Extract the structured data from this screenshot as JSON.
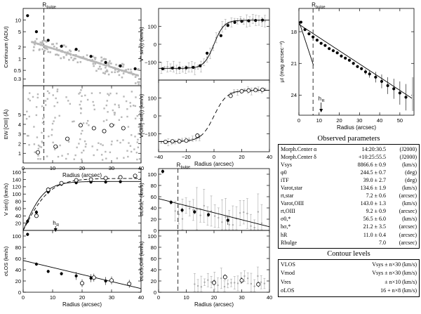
{
  "chart_data": [
    {
      "id": "continuum",
      "type": "scatter",
      "ylabel": "Continuum (ADU)",
      "xlim": [
        0,
        40
      ],
      "ylim_log": [
        0.2,
        20
      ],
      "yticks": [
        {
          "v": 0.3,
          "label": "0.3"
        },
        {
          "v": 0.5,
          "label": "0.5"
        },
        {
          "v": 1,
          "label": "1"
        },
        {
          "v": 2,
          "label": "2"
        },
        {
          "v": 5,
          "label": "5"
        },
        {
          "v": 10,
          "label": "10"
        }
      ],
      "vline": 7.0,
      "vline_label": "R",
      "vline_sub": "bulge",
      "series": [
        {
          "kind": "measured",
          "x": [
            1.5,
            4.5,
            8.5,
            13,
            18,
            23,
            28,
            33,
            38
          ],
          "y": [
            13,
            5.0,
            3.0,
            2.1,
            1.75,
            1.15,
            0.8,
            0.65,
            0.55
          ]
        }
      ]
    },
    {
      "id": "ew",
      "type": "scatter",
      "ylabel": "EW [OIII] (Å)",
      "xlabel": "Radius (arcsec)",
      "xlim": [
        0,
        40
      ],
      "ylim": [
        0,
        8
      ],
      "yticks": [
        {
          "v": 1,
          "label": "1"
        },
        {
          "v": 2,
          "label": "2"
        },
        {
          "v": 3,
          "label": "3"
        },
        {
          "v": 4,
          "label": "4"
        },
        {
          "v": 5,
          "label": "5"
        }
      ],
      "xticks": [
        0,
        10,
        20,
        30,
        40
      ],
      "vline": 7.0,
      "series": [
        {
          "kind": "open",
          "x": [
            5,
            11,
            15,
            19.5,
            24,
            27.5,
            30,
            34
          ],
          "y": [
            1.1,
            1.7,
            2.5,
            3.9,
            3.6,
            3.3,
            3.9,
            3.6
          ]
        }
      ]
    },
    {
      "id": "vstar",
      "type": "line",
      "ylabel": "V* sin(i) (km/s)",
      "xlim": [
        -40,
        40
      ],
      "ylim": [
        -200,
        200
      ],
      "yticks": [
        {
          "v": -100,
          "label": "−100"
        },
        {
          "v": 0,
          "label": "0"
        },
        {
          "v": 100,
          "label": "100"
        }
      ],
      "series": [
        {
          "kind": "filled",
          "x": [
            -37,
            -30,
            -25,
            -20,
            -15,
            -10,
            -5,
            5,
            10,
            15,
            20,
            25,
            30,
            35
          ],
          "y": [
            -137,
            -133,
            -133,
            -131,
            -129,
            -120,
            -50,
            48,
            105,
            122,
            128,
            131,
            133,
            135
          ]
        }
      ]
    },
    {
      "id": "vgas",
      "type": "line",
      "ylabel": "V[OIII] sin(i) (km/s)",
      "xlabel": "Radius (arcsec)",
      "xlim": [
        -40,
        40
      ],
      "ylim": [
        -200,
        200
      ],
      "yticks": [
        {
          "v": -100,
          "label": "−100"
        },
        {
          "v": 0,
          "label": "0"
        },
        {
          "v": 100,
          "label": "100"
        }
      ],
      "xticks": [
        {
          "v": -40,
          "label": "−40"
        },
        {
          "v": -20,
          "label": "−20"
        },
        {
          "v": 0,
          "label": "0"
        },
        {
          "v": 20,
          "label": "20"
        },
        {
          "v": 40,
          "label": "40"
        }
      ],
      "series": [
        {
          "kind": "open",
          "x": [
            -35,
            -30,
            -25,
            -20,
            -12,
            12,
            20,
            25,
            30,
            35
          ],
          "y": [
            -145,
            -142,
            -142,
            -138,
            -110,
            112,
            138,
            142,
            144,
            146
          ]
        }
      ]
    },
    {
      "id": "sb",
      "type": "line",
      "ylabel": "μI (mag arcsec⁻²)",
      "xlabel": "Radius (arcsec)",
      "xlim": [
        0,
        57
      ],
      "ylim": [
        15.8,
        25.9
      ],
      "yticks": [
        {
          "v": 18,
          "label": "18"
        },
        {
          "v": 21,
          "label": "21"
        },
        {
          "v": 24,
          "label": "24"
        }
      ],
      "xticks": [
        0,
        10,
        20,
        30,
        40,
        50
      ],
      "vline": 7.0,
      "vline_label": "R",
      "vline_sub": "bulge",
      "arrow_x": 11.0,
      "arrow_label": "h",
      "arrow_sub": "R",
      "series": [
        {
          "kind": "filled",
          "x": [
            1,
            3,
            5,
            7,
            9,
            11,
            13,
            15,
            17,
            19,
            21,
            23,
            25,
            27,
            29,
            31,
            33,
            35,
            38,
            41,
            44,
            47,
            50,
            53
          ],
          "y": [
            17.1,
            17.8,
            18.2,
            18.5,
            18.8,
            19.1,
            19.3,
            19.6,
            19.8,
            20.0,
            20.3,
            20.5,
            20.7,
            21.0,
            21.3,
            21.5,
            21.8,
            22.0,
            22.3,
            22.7,
            23.1,
            23.4,
            23.8,
            24.2
          ]
        }
      ]
    },
    {
      "id": "vrot",
      "type": "line",
      "ylabel": "V sin(i) (km/s)",
      "xlim": [
        0,
        40
      ],
      "ylim": [
        0,
        170
      ],
      "yticks": [
        {
          "v": 20,
          "label": "20"
        },
        {
          "v": 40,
          "label": "40"
        },
        {
          "v": 60,
          "label": "60"
        },
        {
          "v": 80,
          "label": "80"
        },
        {
          "v": 100,
          "label": "100"
        },
        {
          "v": 120,
          "label": "120"
        },
        {
          "v": 140,
          "label": "140"
        },
        {
          "v": 160,
          "label": "160"
        }
      ],
      "arrow_x": 11.0,
      "arrow_label": "h",
      "arrow_sub": "R",
      "series": [
        {
          "kind": "filled",
          "x": [
            1.5,
            4.5,
            8.5,
            13,
            18,
            23,
            28,
            33
          ],
          "y": [
            25,
            50,
            106,
            127,
            131,
            133,
            133,
            134
          ]
        },
        {
          "kind": "open",
          "x": [
            4.5,
            8.5,
            13,
            18,
            23,
            28,
            33,
            38
          ],
          "y": [
            40,
            112,
            130,
            138,
            140,
            144,
            146,
            150
          ]
        }
      ]
    },
    {
      "id": "sigstar",
      "type": "line",
      "ylabel": "σLOS (km/s)",
      "xlabel": "Radius (arcsec)",
      "xlim": [
        0,
        40
      ],
      "ylim": [
        0,
        110
      ],
      "yticks": [
        {
          "v": 0,
          "label": "0"
        },
        {
          "v": 20,
          "label": "20"
        },
        {
          "v": 40,
          "label": "40"
        },
        {
          "v": 60,
          "label": "60"
        },
        {
          "v": 80,
          "label": "80"
        },
        {
          "v": 100,
          "label": "100"
        }
      ],
      "xticks": [
        0,
        10,
        20,
        30,
        40
      ],
      "series": [
        {
          "kind": "filled",
          "x": [
            1.5,
            4.5,
            8.5,
            13,
            18,
            23,
            28
          ],
          "y": [
            103,
            50,
            37,
            33,
            29,
            25,
            20
          ]
        },
        {
          "kind": "open",
          "x": [
            20,
            24,
            30,
            36
          ],
          "y": [
            16,
            26,
            21,
            15
          ]
        }
      ]
    },
    {
      "id": "siglos",
      "type": "scatter",
      "ylabel": "σLOS,* (km/s)",
      "xlim": [
        0,
        40
      ],
      "ylim": [
        0,
        110
      ],
      "yticks": [
        {
          "v": 0,
          "label": "0"
        },
        {
          "v": 20,
          "label": "20"
        },
        {
          "v": 40,
          "label": "40"
        },
        {
          "v": 60,
          "label": "60"
        },
        {
          "v": 80,
          "label": "80"
        },
        {
          "v": 100,
          "label": "100"
        }
      ],
      "vline": 7.0,
      "vline_label": "R",
      "vline_sub": "bulge",
      "series": [
        {
          "kind": "filled",
          "x": [
            1.5,
            4.5,
            8.5,
            13,
            18,
            25
          ],
          "y": [
            105,
            50,
            36,
            33,
            28,
            18
          ]
        }
      ]
    },
    {
      "id": "siggas",
      "type": "scatter",
      "ylabel": "σLOS,OIII (km/s)",
      "xlabel": "Radius (arcsec)",
      "xlim": [
        0,
        40
      ],
      "ylim": [
        0,
        110
      ],
      "yticks": [
        {
          "v": 0,
          "label": "0"
        },
        {
          "v": 20,
          "label": "20"
        },
        {
          "v": 40,
          "label": "40"
        },
        {
          "v": 60,
          "label": "60"
        },
        {
          "v": 80,
          "label": "80"
        },
        {
          "v": 100,
          "label": "100"
        }
      ],
      "xticks": [
        0,
        10,
        20,
        30,
        40
      ],
      "vline": 7.0,
      "series": [
        {
          "kind": "open",
          "x": [
            20,
            24,
            30,
            36
          ],
          "y": [
            17,
            27,
            21,
            14
          ]
        }
      ]
    }
  ],
  "observed": {
    "title": "Observed parameters",
    "rows": [
      {
        "label": "Morph.Center α",
        "value": "14:20:30.5",
        "unit": "(J2000)"
      },
      {
        "label": "Morph.Center δ",
        "value": "+10:25:55.5",
        "unit": "(J2000)"
      },
      {
        "label": "Vsys",
        "value": "8866.6 ± 0.9",
        "unit": "(km/s)"
      },
      {
        "label": "φ0",
        "value": "244.5 ± 0.7",
        "unit": "(deg)"
      },
      {
        "label": "iTF",
        "value": "39.0 ± 2.7",
        "unit": "(deg)"
      },
      {
        "label": "Varot,star",
        "value": "134.6 ± 1.9",
        "unit": "(km/s)"
      },
      {
        "label": "rt,star",
        "value": "7.2 ± 0.6",
        "unit": "(arcsec)"
      },
      {
        "label": "Varot,OIII",
        "value": "143.0 ± 1.3",
        "unit": "(km/s)"
      },
      {
        "label": "rt,OIII",
        "value": "9.2 ± 0.9",
        "unit": "(arcsec)"
      },
      {
        "label": "σ0,*",
        "value": "56.5 ± 6.0",
        "unit": "(km/s)"
      },
      {
        "label": "hσ,*",
        "value": "21.2 ± 3.5",
        "unit": "(arcsec)"
      },
      {
        "label": "hR",
        "value": "11.0 ± 0.4",
        "unit": "(arcsec)"
      },
      {
        "label": "Rbulge",
        "value": "7.0",
        "unit": "(arcsec)"
      }
    ]
  },
  "contours": {
    "title": "Contour levels",
    "rows": [
      {
        "label": "VLOS",
        "value": "Vsys ± n×30  (km/s)"
      },
      {
        "label": "Vmod",
        "value": "Vsys ± n×30  (km/s)"
      },
      {
        "label": "Vres",
        "value": "± n×10  (km/s)"
      },
      {
        "label": "σLOS",
        "value": "16 + n×8  (km/s)"
      }
    ]
  }
}
